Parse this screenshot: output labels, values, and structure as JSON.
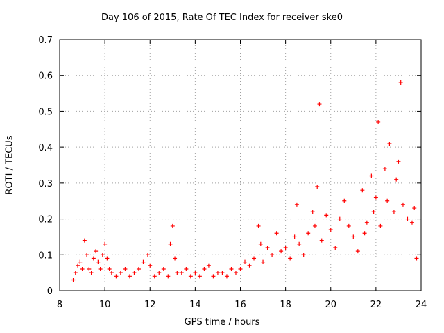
{
  "chart_data": {
    "type": "scatter",
    "title": "Day 106 of 2015, Rate Of TEC Index for receiver ske0",
    "xlabel": "GPS time / hours",
    "ylabel": "ROTI / TECUs",
    "xlim": [
      8,
      24
    ],
    "ylim": [
      0,
      0.7
    ],
    "xticks": [
      8,
      10,
      12,
      14,
      16,
      18,
      20,
      22,
      24
    ],
    "yticks": [
      0,
      0.1,
      0.2,
      0.3,
      0.4,
      0.5,
      0.6,
      0.7
    ],
    "ytick_labels": [
      "0",
      "0.1",
      "0.2",
      "0.3",
      "0.4",
      "0.5",
      "0.6",
      "0.7"
    ],
    "grid": true,
    "marker": "+",
    "color": "#ff0000",
    "series": [
      {
        "name": "ROTI",
        "x": [
          8.6,
          8.7,
          8.8,
          8.9,
          9.0,
          9.1,
          9.2,
          9.3,
          9.4,
          9.5,
          9.6,
          9.7,
          9.8,
          9.9,
          10.0,
          10.1,
          10.2,
          10.3,
          10.5,
          10.7,
          10.9,
          11.1,
          11.3,
          11.5,
          11.7,
          11.9,
          12.0,
          12.2,
          12.4,
          12.6,
          12.8,
          12.9,
          13.0,
          13.1,
          13.2,
          13.4,
          13.6,
          13.8,
          14.0,
          14.2,
          14.4,
          14.6,
          14.8,
          15.0,
          15.2,
          15.4,
          15.6,
          15.8,
          16.0,
          16.2,
          16.4,
          16.6,
          16.8,
          16.9,
          17.0,
          17.2,
          17.4,
          17.6,
          17.8,
          18.0,
          18.2,
          18.4,
          18.5,
          18.6,
          18.8,
          19.0,
          19.2,
          19.3,
          19.4,
          19.5,
          19.6,
          19.8,
          20.0,
          20.2,
          20.4,
          20.6,
          20.8,
          21.0,
          21.2,
          21.4,
          21.5,
          21.6,
          21.8,
          21.9,
          22.0,
          22.1,
          22.2,
          22.4,
          22.5,
          22.6,
          22.8,
          22.9,
          23.0,
          23.1,
          23.2,
          23.4,
          23.6,
          23.7,
          23.8
        ],
        "y": [
          0.03,
          0.05,
          0.07,
          0.08,
          0.06,
          0.14,
          0.1,
          0.06,
          0.05,
          0.09,
          0.11,
          0.08,
          0.06,
          0.1,
          0.13,
          0.09,
          0.06,
          0.05,
          0.04,
          0.05,
          0.06,
          0.04,
          0.05,
          0.06,
          0.08,
          0.1,
          0.07,
          0.04,
          0.05,
          0.06,
          0.04,
          0.13,
          0.18,
          0.09,
          0.05,
          0.05,
          0.06,
          0.04,
          0.05,
          0.04,
          0.06,
          0.07,
          0.04,
          0.05,
          0.05,
          0.04,
          0.06,
          0.05,
          0.06,
          0.08,
          0.07,
          0.09,
          0.18,
          0.13,
          0.08,
          0.12,
          0.1,
          0.16,
          0.11,
          0.12,
          0.09,
          0.15,
          0.24,
          0.13,
          0.1,
          0.16,
          0.22,
          0.18,
          0.29,
          0.52,
          0.14,
          0.21,
          0.17,
          0.12,
          0.2,
          0.25,
          0.18,
          0.15,
          0.11,
          0.28,
          0.16,
          0.19,
          0.32,
          0.22,
          0.26,
          0.47,
          0.18,
          0.34,
          0.25,
          0.41,
          0.22,
          0.31,
          0.36,
          0.58,
          0.24,
          0.2,
          0.19,
          0.23,
          0.09
        ]
      }
    ]
  }
}
